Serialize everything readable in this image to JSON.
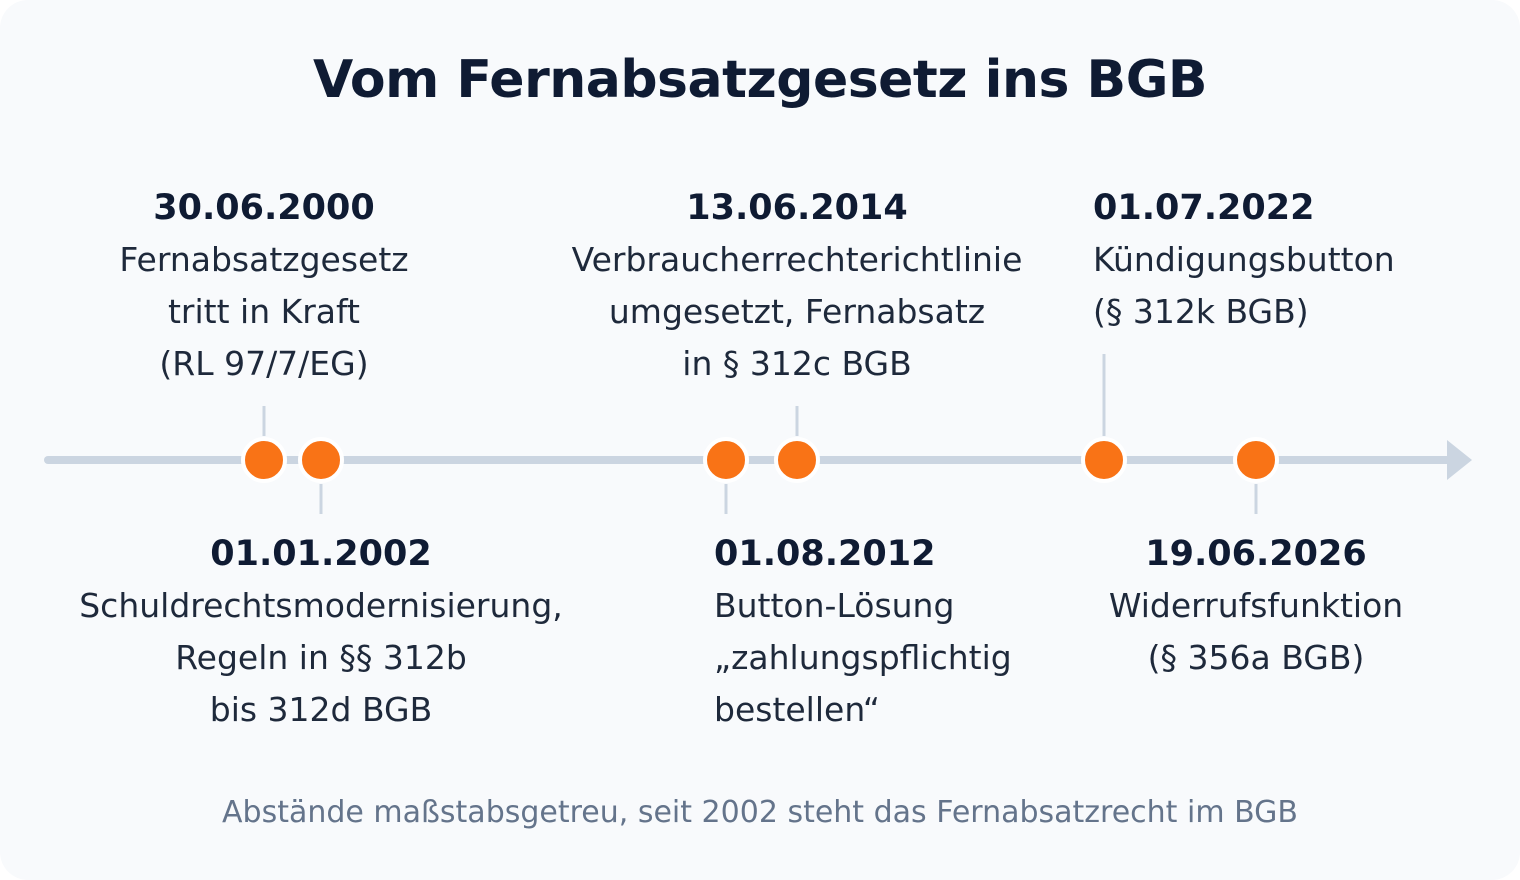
{
  "title": "Vom Fernabsatzgesetz ins BGB",
  "caption": "Abstände maßstabsgetreu, seit 2002 steht das Fernabsatzrecht im BGB",
  "colors": {
    "line": "#cbd5e1",
    "dot": "#f97316",
    "dot_ring": "#ffffff",
    "text": "#1e293b",
    "caption": "#64748b"
  },
  "events": [
    {
      "date": "30.06.2000",
      "desc": "Fernabsatzgesetz\ntritt in Kraft\n(RL 97/7/EG)"
    },
    {
      "date": "01.01.2002",
      "desc": "Schuldrechtsmodernisierung,\nRegeln in §§ 312b\nbis 312d BGB"
    },
    {
      "date": "01.08.2012",
      "desc": "Button-Lösung\n„zahlungspflichtig\nbestellen“"
    },
    {
      "date": "13.06.2014",
      "desc": "Verbraucherrechterichtlinie\numgesetzt, Fernabsatz\nin § 312c BGB"
    },
    {
      "date": "01.07.2022",
      "desc": "Kündigungsbutton\n(§ 312k BGB)"
    },
    {
      "date": "19.06.2026",
      "desc": "Widerrufsfunktion\n(§ 356a BGB)"
    }
  ]
}
